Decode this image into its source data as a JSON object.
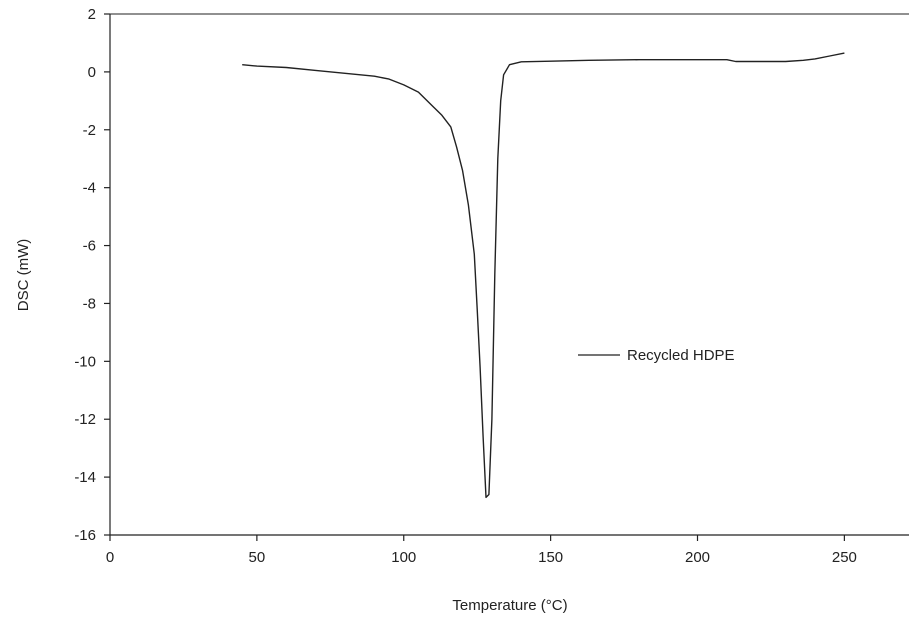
{
  "chart_data": {
    "type": "line",
    "title": "",
    "xlabel": "Temperature (°C)",
    "ylabel": "DSC (mW)",
    "xlim": [
      0,
      272
    ],
    "ylim": [
      -16,
      2
    ],
    "x_ticks": [
      "0",
      "50",
      "100",
      "150",
      "200",
      "250"
    ],
    "y_ticks": [
      "2",
      "0",
      "-2",
      "-4",
      "-6",
      "-8",
      "-10",
      "-12",
      "-14",
      "-16"
    ],
    "grid": false,
    "legend_position": "center-right",
    "line_color": "#222222",
    "series": [
      {
        "name": "Recycled HDPE",
        "x": [
          45,
          50,
          60,
          70,
          80,
          90,
          95,
          100,
          105,
          110,
          113,
          116,
          118,
          120,
          122,
          124,
          125,
          126,
          127,
          128,
          129,
          130,
          131,
          132,
          133,
          134,
          136,
          140,
          150,
          163,
          180,
          200,
          210,
          213,
          220,
          230,
          236,
          240,
          245,
          250
        ],
        "y": [
          0.25,
          0.2,
          0.15,
          0.05,
          -0.05,
          -0.15,
          -0.25,
          -0.45,
          -0.7,
          -1.2,
          -1.5,
          -1.9,
          -2.6,
          -3.4,
          -4.6,
          -6.3,
          -8.2,
          -10.2,
          -12.6,
          -14.7,
          -14.6,
          -12.0,
          -7.0,
          -3.0,
          -1.0,
          -0.1,
          0.25,
          0.35,
          0.37,
          0.4,
          0.42,
          0.42,
          0.42,
          0.36,
          0.36,
          0.36,
          0.4,
          0.45,
          0.55,
          0.65
        ]
      }
    ]
  }
}
